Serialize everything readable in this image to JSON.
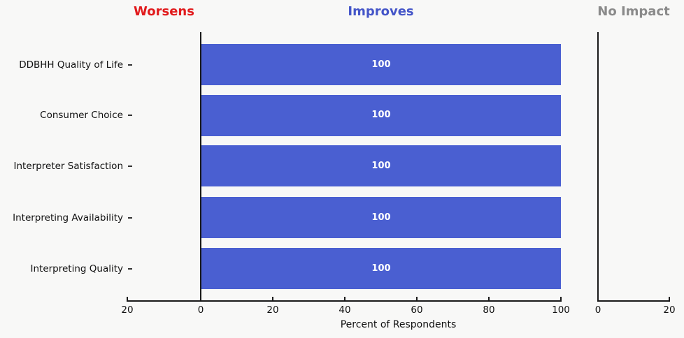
{
  "chart_data": {
    "type": "bar",
    "orientation": "horizontal",
    "title": "",
    "xlabel": "Percent of Respondents",
    "ylabel": "",
    "grid": false,
    "legend_position": "none",
    "categories": [
      "DDBHH Quality of Life",
      "Consumer Choice",
      "Interpreter Satisfaction",
      "Interpreting Availability",
      "Interpreting Quality"
    ],
    "bar_color": "#4a5fd1",
    "bar_label_color": "#ffffff",
    "axis_color": "#1a1a1a",
    "background_color": "#f8f8f7",
    "panels": [
      {
        "title": "Worsens",
        "title_color": "#e11a1c",
        "xlim": [
          20,
          0
        ],
        "tick_labels": [
          20,
          0
        ],
        "values": [
          0,
          0,
          0,
          0,
          0
        ]
      },
      {
        "title": "Improves",
        "title_color": "#4455c8",
        "xlim": [
          0,
          100
        ],
        "tick_labels": [
          0,
          20,
          40,
          60,
          80,
          100
        ],
        "values": [
          100,
          100,
          100,
          100,
          100
        ]
      },
      {
        "title": "No Impact",
        "title_color": "#8a8a8a",
        "xlim": [
          0,
          20
        ],
        "tick_labels": [
          0,
          20
        ],
        "values": [
          0,
          0,
          0,
          0,
          0
        ]
      }
    ]
  }
}
